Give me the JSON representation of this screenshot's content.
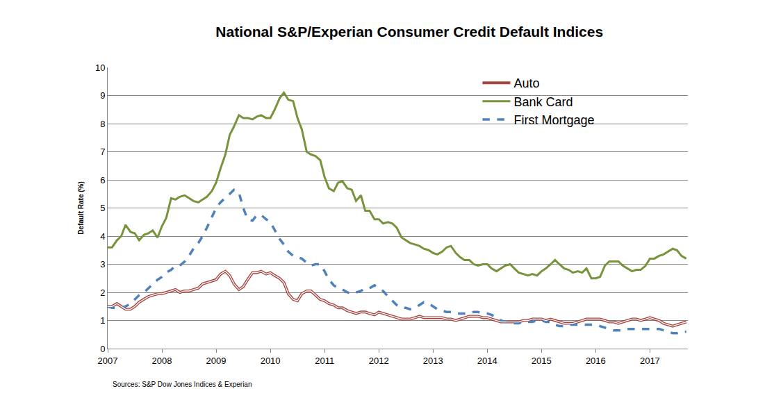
{
  "chart_data": {
    "type": "line",
    "title": "National S&P/Experian Consumer Credit Default Indices",
    "y_label": "Default Rate (%)",
    "annotations": [
      "Sources: S&P Dow Jones Indices & Experian"
    ],
    "xlim": [
      2007,
      2017.7
    ],
    "xticks": [
      2007,
      2008,
      2009,
      2010,
      2011,
      2012,
      2013,
      2014,
      2015,
      2016,
      2017
    ],
    "ylim": [
      0,
      10
    ],
    "yticks": [
      0,
      1,
      2,
      3,
      4,
      5,
      6,
      7,
      8,
      9,
      10
    ],
    "grid": true,
    "legend": "top right",
    "x": [
      2007,
      2007.08,
      2007.17,
      2007.25,
      2007.33,
      2007.42,
      2007.5,
      2007.58,
      2007.67,
      2007.75,
      2007.83,
      2007.92,
      2008,
      2008.08,
      2008.17,
      2008.25,
      2008.33,
      2008.42,
      2008.5,
      2008.58,
      2008.67,
      2008.75,
      2008.83,
      2008.92,
      2009,
      2009.08,
      2009.17,
      2009.25,
      2009.33,
      2009.42,
      2009.5,
      2009.58,
      2009.67,
      2009.75,
      2009.83,
      2009.92,
      2010,
      2010.08,
      2010.17,
      2010.25,
      2010.33,
      2010.42,
      2010.5,
      2010.58,
      2010.67,
      2010.75,
      2010.83,
      2010.92,
      2011,
      2011.08,
      2011.17,
      2011.25,
      2011.33,
      2011.42,
      2011.5,
      2011.58,
      2011.67,
      2011.75,
      2011.83,
      2011.92,
      2012,
      2012.08,
      2012.17,
      2012.25,
      2012.33,
      2012.42,
      2012.5,
      2012.58,
      2012.67,
      2012.75,
      2012.83,
      2012.92,
      2013,
      2013.08,
      2013.17,
      2013.25,
      2013.33,
      2013.42,
      2013.5,
      2013.58,
      2013.67,
      2013.75,
      2013.83,
      2013.92,
      2014,
      2014.08,
      2014.17,
      2014.25,
      2014.33,
      2014.42,
      2014.5,
      2014.58,
      2014.67,
      2014.75,
      2014.83,
      2014.92,
      2015,
      2015.08,
      2015.17,
      2015.25,
      2015.33,
      2015.42,
      2015.5,
      2015.58,
      2015.67,
      2015.75,
      2015.83,
      2015.92,
      2016,
      2016.08,
      2016.17,
      2016.25,
      2016.33,
      2016.42,
      2016.5,
      2016.58,
      2016.67,
      2016.75,
      2016.83,
      2016.92,
      2017,
      2017.08,
      2017.17,
      2017.25,
      2017.33,
      2017.42,
      2017.5,
      2017.58,
      2017.67
    ],
    "series": [
      {
        "name": "Auto",
        "color": "#a9443f",
        "line_style": "double",
        "values": [
          1.5,
          1.5,
          1.6,
          1.5,
          1.4,
          1.4,
          1.5,
          1.65,
          1.75,
          1.85,
          1.9,
          1.95,
          1.95,
          2.0,
          2.05,
          2.1,
          2.0,
          2.05,
          2.05,
          2.1,
          2.15,
          2.3,
          2.35,
          2.4,
          2.45,
          2.65,
          2.75,
          2.6,
          2.3,
          2.1,
          2.2,
          2.45,
          2.7,
          2.7,
          2.75,
          2.65,
          2.7,
          2.6,
          2.5,
          2.35,
          1.95,
          1.75,
          1.7,
          1.95,
          2.05,
          2.05,
          1.9,
          1.75,
          1.7,
          1.6,
          1.55,
          1.45,
          1.45,
          1.35,
          1.3,
          1.25,
          1.3,
          1.3,
          1.25,
          1.2,
          1.3,
          1.25,
          1.2,
          1.15,
          1.1,
          1.05,
          1.05,
          1.05,
          1.1,
          1.15,
          1.1,
          1.1,
          1.1,
          1.1,
          1.1,
          1.05,
          1.05,
          1.0,
          1.05,
          1.1,
          1.15,
          1.15,
          1.15,
          1.1,
          1.1,
          1.05,
          1.0,
          0.95,
          0.95,
          0.95,
          0.95,
          0.95,
          1.0,
          1.0,
          1.05,
          1.05,
          1.05,
          1.0,
          1.05,
          1.0,
          0.95,
          0.9,
          0.9,
          0.9,
          0.95,
          1.0,
          1.05,
          1.05,
          1.05,
          1.05,
          1.0,
          0.95,
          0.95,
          0.9,
          0.95,
          1.0,
          1.05,
          1.05,
          1.0,
          1.05,
          1.1,
          1.05,
          1.0,
          0.9,
          0.85,
          0.8,
          0.85,
          0.9,
          0.95
        ]
      },
      {
        "name": "Bank Card",
        "color": "#77933c",
        "line_style": "solid",
        "values": [
          3.6,
          3.6,
          3.85,
          4.0,
          4.4,
          4.15,
          4.1,
          3.85,
          4.05,
          4.1,
          4.2,
          3.95,
          4.35,
          4.65,
          5.35,
          5.3,
          5.4,
          5.45,
          5.35,
          5.25,
          5.2,
          5.3,
          5.4,
          5.6,
          5.9,
          6.4,
          6.9,
          7.6,
          7.9,
          8.3,
          8.2,
          8.2,
          8.15,
          8.25,
          8.3,
          8.2,
          8.2,
          8.5,
          8.9,
          9.1,
          8.85,
          8.8,
          8.2,
          7.8,
          7.0,
          6.9,
          6.85,
          6.7,
          6.1,
          5.7,
          5.6,
          5.9,
          5.95,
          5.7,
          5.65,
          5.25,
          5.45,
          4.9,
          4.9,
          4.6,
          4.6,
          4.45,
          4.5,
          4.45,
          4.3,
          3.95,
          3.85,
          3.75,
          3.7,
          3.65,
          3.55,
          3.5,
          3.4,
          3.35,
          3.45,
          3.6,
          3.65,
          3.4,
          3.25,
          3.15,
          3.15,
          3.0,
          2.95,
          3.0,
          3.0,
          2.85,
          2.75,
          2.85,
          2.95,
          3.0,
          2.85,
          2.7,
          2.65,
          2.6,
          2.65,
          2.6,
          2.75,
          2.85,
          3.0,
          3.15,
          3.0,
          2.85,
          2.8,
          2.7,
          2.75,
          2.7,
          2.85,
          2.5,
          2.5,
          2.55,
          2.95,
          3.1,
          3.1,
          3.1,
          2.95,
          2.85,
          2.75,
          2.8,
          2.8,
          2.95,
          3.2,
          3.2,
          3.3,
          3.35,
          3.45,
          3.55,
          3.5,
          3.3,
          3.2
        ]
      },
      {
        "name": "First Mortgage",
        "color": "#4f81bd",
        "line_style": "dash",
        "values": [
          1.5,
          1.45,
          1.45,
          1.45,
          1.5,
          1.6,
          1.75,
          1.9,
          2.0,
          2.15,
          2.3,
          2.45,
          2.55,
          2.7,
          2.8,
          2.95,
          2.95,
          3.1,
          3.3,
          3.55,
          3.75,
          4.0,
          4.3,
          4.65,
          5.0,
          5.2,
          5.35,
          5.5,
          5.65,
          5.55,
          5.0,
          4.6,
          4.55,
          4.75,
          4.75,
          4.6,
          4.5,
          4.2,
          3.9,
          3.7,
          3.45,
          3.3,
          3.25,
          3.2,
          3.05,
          2.95,
          3.0,
          3.0,
          2.75,
          2.45,
          2.25,
          2.15,
          2.1,
          2.0,
          1.95,
          2.0,
          2.05,
          2.15,
          2.15,
          2.25,
          2.15,
          2.05,
          1.85,
          1.7,
          1.55,
          1.45,
          1.45,
          1.4,
          1.45,
          1.55,
          1.65,
          1.6,
          1.5,
          1.4,
          1.35,
          1.3,
          1.3,
          1.25,
          1.25,
          1.25,
          1.25,
          1.3,
          1.3,
          1.25,
          1.25,
          1.2,
          1.1,
          1.0,
          0.95,
          0.9,
          0.9,
          0.9,
          0.95,
          0.95,
          0.95,
          1.0,
          1.0,
          0.95,
          0.95,
          0.85,
          0.8,
          0.8,
          0.85,
          0.85,
          0.85,
          0.85,
          0.85,
          0.85,
          0.85,
          0.8,
          0.75,
          0.7,
          0.65,
          0.65,
          0.65,
          0.7,
          0.7,
          0.7,
          0.7,
          0.7,
          0.72,
          0.72,
          0.7,
          0.65,
          0.6,
          0.55,
          0.55,
          0.6,
          0.6
        ]
      }
    ]
  }
}
